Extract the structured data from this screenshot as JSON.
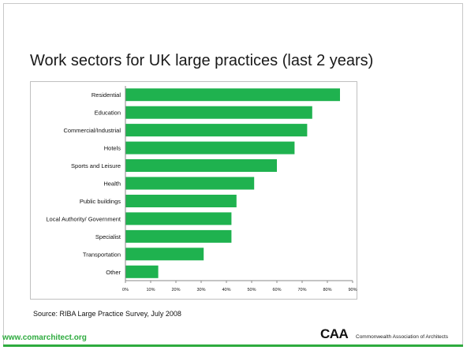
{
  "slide": {
    "title": "Work sectors for UK large practices (last 2 years)",
    "source": "Source:  RIBA Large Practice Survey, July 2008",
    "website": "www.comarchitect.org",
    "logo_text": "CAA",
    "organization": "Commonwealth Association of Architects"
  },
  "colors": {
    "bar": "#1fb24f",
    "accent": "#2eab3f"
  },
  "chart_data": {
    "type": "bar",
    "orientation": "horizontal",
    "categories": [
      "Residential",
      "Education",
      "Commercial/Industrial",
      "Hotels",
      "Sports and Leisure",
      "Health",
      "Public buildings",
      "Local Authority/ Government",
      "Specialist",
      "Transportation",
      "Other"
    ],
    "values": [
      85,
      74,
      72,
      67,
      60,
      51,
      44,
      42,
      42,
      31,
      13
    ],
    "xticks": [
      "0%",
      "10%",
      "20%",
      "30%",
      "40%",
      "50%",
      "60%",
      "70%",
      "80%",
      "90%"
    ],
    "xlim": [
      0,
      90
    ],
    "unit": "%",
    "grid": false,
    "legend": "none"
  }
}
